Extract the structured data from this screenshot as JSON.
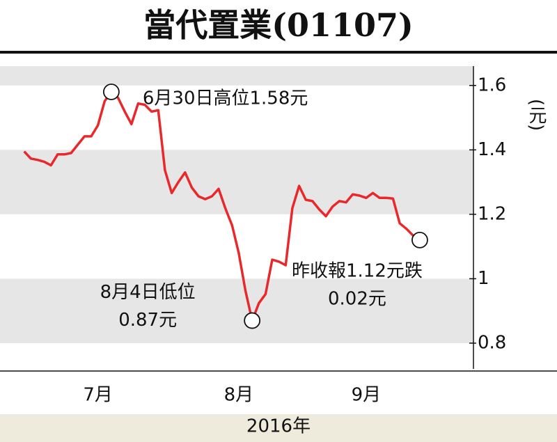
{
  "chart_data": {
    "type": "line",
    "title": "當代置業(01107)",
    "x_label": "2016年",
    "y_label": "(元)",
    "xlim": [
      -3.6,
      67
    ],
    "xticks": [
      {
        "value": 11,
        "label": "7月"
      },
      {
        "value": 32,
        "label": "8月"
      },
      {
        "value": 51,
        "label": "9月"
      }
    ],
    "ylim": [
      0.72,
      1.66
    ],
    "yticks": [
      1.6,
      1.4,
      1.2,
      1,
      0.8
    ],
    "grid": "bands",
    "series": [
      {
        "name": "當代置業",
        "color": "#e8282b",
        "values": [
          1.395,
          1.373,
          1.369,
          1.363,
          1.352,
          1.386,
          1.386,
          1.39,
          1.416,
          1.442,
          1.442,
          1.476,
          1.551,
          1.58,
          1.562,
          1.519,
          1.48,
          1.544,
          1.54,
          1.519,
          1.523,
          1.337,
          1.266,
          1.3,
          1.33,
          1.283,
          1.256,
          1.247,
          1.256,
          1.279,
          1.219,
          1.166,
          1.08,
          0.963,
          0.87,
          0.924,
          0.952,
          1.059,
          1.053,
          1.042,
          1.219,
          1.288,
          1.245,
          1.241,
          1.215,
          1.194,
          1.224,
          1.241,
          1.237,
          1.262,
          1.258,
          1.251,
          1.266,
          1.251,
          1.251,
          1.249,
          1.172,
          1.155,
          1.134,
          1.12
        ]
      }
    ],
    "annotations": [
      {
        "index": 13,
        "lines": [
          "6月30日高位1.58元"
        ]
      },
      {
        "index": 34,
        "lines": [
          "8月4日低位",
          "0.87元"
        ]
      },
      {
        "index": 59,
        "lines": [
          "昨收報1.12元跌",
          "0.02元"
        ]
      }
    ]
  }
}
